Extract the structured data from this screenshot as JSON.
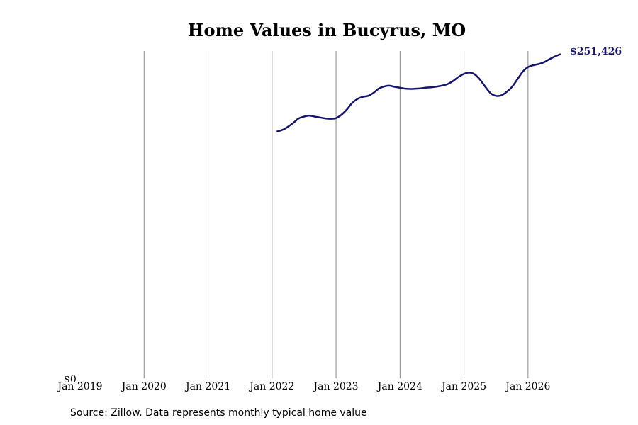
{
  "chart_data": {
    "type": "line",
    "title": "Home Values in Bucyrus, MO",
    "source": "Source: Zillow. Data represents monthly typical home value",
    "xlabel": "",
    "ylabel": "",
    "x_ticks": [
      "Jan 2019",
      "Jan 2020",
      "Jan 2021",
      "Jan 2022",
      "Jan 2023",
      "Jan 2024",
      "Jan 2025",
      "Jan 2026"
    ],
    "y_ticks": [
      "$0"
    ],
    "ylim": [
      0,
      254000
    ],
    "xlim": [
      "2019-01",
      "2026-07"
    ],
    "grid": "vertical",
    "line_color": "#14146b",
    "gridline_color": "#888888",
    "end_label": "$251,426",
    "series": [
      {
        "x": [
          "2022-02",
          "2022-03",
          "2022-04",
          "2022-05",
          "2022-06",
          "2022-07",
          "2022-08",
          "2022-09",
          "2022-10",
          "2022-11",
          "2022-12",
          "2023-01",
          "2023-02",
          "2023-03",
          "2023-04",
          "2023-05",
          "2023-06",
          "2023-07",
          "2023-08",
          "2023-09",
          "2023-10",
          "2023-11",
          "2023-12",
          "2024-01",
          "2024-02",
          "2024-03",
          "2024-04",
          "2024-05",
          "2024-06",
          "2024-07",
          "2024-08",
          "2024-09",
          "2024-10",
          "2024-11",
          "2024-12",
          "2025-01",
          "2025-02",
          "2025-03",
          "2025-04",
          "2025-05",
          "2025-06",
          "2025-07",
          "2025-08",
          "2025-09",
          "2025-10",
          "2025-11",
          "2025-12",
          "2026-01",
          "2026-02",
          "2026-03",
          "2026-04",
          "2026-05",
          "2026-06",
          "2026-07"
        ],
        "values": [
          191600,
          192900,
          195300,
          198300,
          201700,
          203100,
          203900,
          203100,
          202400,
          201700,
          201400,
          201900,
          204500,
          208500,
          213600,
          216800,
          218400,
          219200,
          221500,
          224800,
          226500,
          227100,
          226200,
          225500,
          224800,
          224600,
          224800,
          225100,
          225600,
          225900,
          226500,
          227300,
          228500,
          230900,
          234000,
          236300,
          237300,
          235900,
          231800,
          226200,
          221200,
          219200,
          219600,
          222300,
          226200,
          232000,
          237900,
          241500,
          243000,
          243900,
          245300,
          247600,
          249700,
          251426
        ]
      }
    ]
  }
}
